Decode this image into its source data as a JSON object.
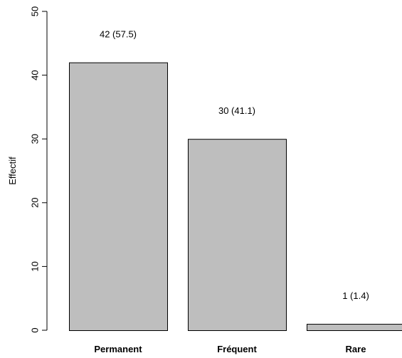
{
  "chart_data": {
    "type": "bar",
    "categories": [
      "Permanent",
      "Fréquent",
      "Rare"
    ],
    "values": [
      42,
      30,
      1
    ],
    "data_labels": [
      "42 (57.5)",
      "30 (41.1)",
      "1 (1.4)"
    ],
    "ylabel": "Effectif",
    "xlabel": "",
    "ylim": [
      0,
      50
    ],
    "yticks": [
      0,
      10,
      20,
      30,
      40,
      50
    ],
    "bar_color": "#bebebe",
    "bar_edge_color": "#000000",
    "grid": false,
    "legend": "none"
  }
}
